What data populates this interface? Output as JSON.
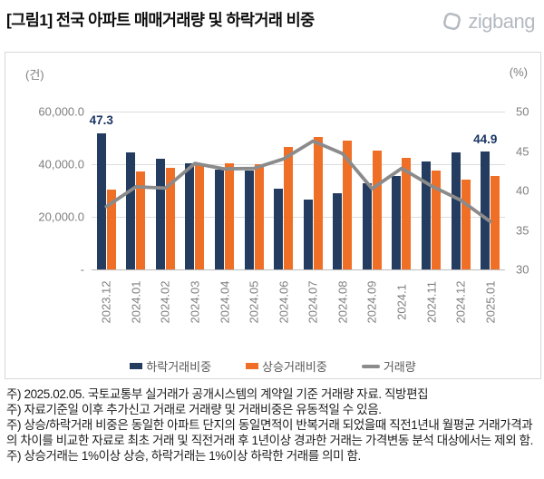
{
  "header": {
    "title": "[그림1] 전국 아파트 매매거래량 및 하락거래 비중",
    "logo_text": "zigbang"
  },
  "chart_data": {
    "type": "bar",
    "subtype": "dual-axis bar + line",
    "categories": [
      "2023.12",
      "2024.01",
      "2024.02",
      "2024.03",
      "2024.04",
      "2024.05",
      "2024.06",
      "2024.07",
      "2024.08",
      "2024.09",
      "2024.1",
      "2024.11",
      "2024.12",
      "2025.01"
    ],
    "series": [
      {
        "name": "하락거래비중",
        "type": "bar",
        "axis": "right",
        "color": "#243c60",
        "values": [
          47.3,
          44.8,
          44.0,
          43.5,
          42.6,
          42.5,
          40.2,
          38.8,
          39.7,
          40.9,
          41.8,
          43.7,
          44.8,
          44.9
        ]
      },
      {
        "name": "상승거래비중",
        "type": "bar",
        "axis": "right",
        "color": "#f06f26",
        "values": [
          40.1,
          42.4,
          42.9,
          43.3,
          43.4,
          43.3,
          45.5,
          46.8,
          46.3,
          45.1,
          44.2,
          42.5,
          41.4,
          41.8
        ]
      },
      {
        "name": "거래량",
        "type": "line",
        "axis": "left",
        "color": "#8b8b8b",
        "values": [
          23900,
          31400,
          30900,
          40300,
          38200,
          38400,
          42000,
          48800,
          44000,
          30700,
          38400,
          31800,
          26300,
          18200
        ]
      }
    ],
    "left_axis": {
      "unit": "(건)",
      "min": 0,
      "max": 60000,
      "tick_labels": [
        "60,000.0",
        "40,000.0",
        "20,000.0",
        "-"
      ]
    },
    "right_axis": {
      "unit": "(%)",
      "min": 30,
      "max": 50,
      "tick_labels": [
        "50",
        "45",
        "40",
        "35",
        "30"
      ]
    },
    "data_labels": [
      {
        "series": 0,
        "index": 0,
        "text": "47.3"
      },
      {
        "series": 0,
        "index": 13,
        "text": "44.9"
      }
    ],
    "grid": true,
    "legend_position": "bottom"
  },
  "footnotes": [
    "주) 2025.02.05. 국토교통부 실거래가 공개시스템의 계약일 기준 거래량 자료. 직방편집",
    "주) 자료기준일 이후 추가신고 거래로 거래량 및 거래비중은 유동적일 수 있음.",
    "주) 상승/하락거래 비중은 동일한 아파트 단지의 동일면적이 반복거래 되었을때 직전1년내 월평균 거래가격과의 차이를 비교한 자료로 최초 거래 및 직전거래 후 1년이상 경과한 거래는 가격변동 분석 대상에서는 제외 함.",
    "주) 상승거래는 1%이상 상승, 하락거래는 1%이상 하락한 거래를 의미 함."
  ]
}
